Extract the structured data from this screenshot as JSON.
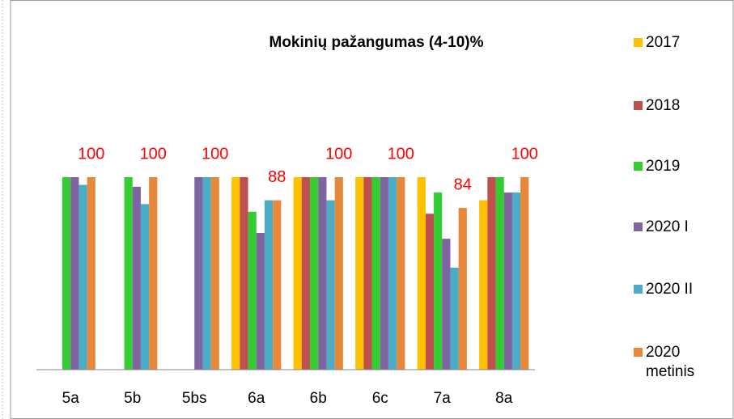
{
  "chart_data": {
    "type": "bar",
    "title": "Mokinių pažangumas (4-10)%",
    "categories": [
      "5a",
      "5b",
      "5bs",
      "6a",
      "6b",
      "6c",
      "7a",
      "8a"
    ],
    "series": [
      {
        "name": "2017",
        "color": "#ffc000",
        "values": [
          null,
          null,
          null,
          100,
          100,
          100,
          100,
          88
        ]
      },
      {
        "name": "2018",
        "color": "#c0504d",
        "values": [
          null,
          null,
          null,
          100,
          100,
          100,
          81,
          100
        ]
      },
      {
        "name": "2019",
        "color": "#33cc33",
        "values": [
          100,
          100,
          null,
          82,
          100,
          100,
          92,
          100
        ]
      },
      {
        "name": "2020 I",
        "color": "#8064a2",
        "values": [
          100,
          95,
          100,
          71,
          100,
          100,
          68,
          92
        ]
      },
      {
        "name": "2020 II",
        "color": "#4bacc6",
        "values": [
          96,
          86,
          100,
          88,
          88,
          100,
          53,
          92
        ]
      },
      {
        "name": "2020 metinis",
        "color": "#e6873a",
        "values": [
          100,
          100,
          100,
          88,
          100,
          100,
          84,
          100
        ],
        "data_labels": true
      }
    ],
    "ylim": [
      0,
      100
    ],
    "data_label_color": "#ff0000",
    "legend": "right"
  }
}
